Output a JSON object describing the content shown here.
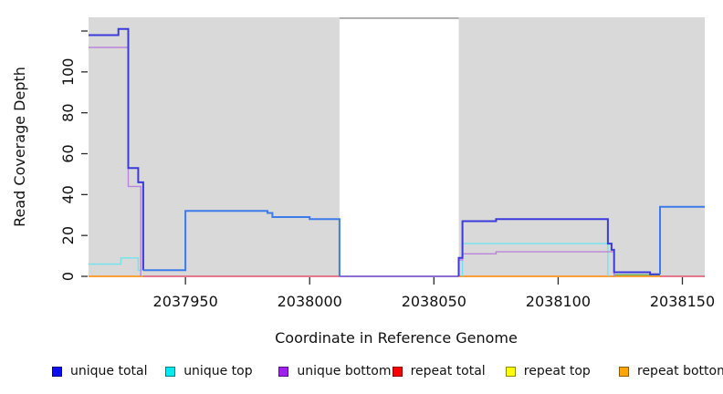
{
  "chart_data": {
    "type": "line",
    "title": "",
    "xlabel": "Coordinate in Reference Genome",
    "ylabel": "Read Coverage Depth",
    "xlim": [
      2037911,
      2038159
    ],
    "ylim": [
      0,
      126.7
    ],
    "x_ticks": [
      2037950,
      2038000,
      2038050,
      2038100,
      2038150
    ],
    "x_tick_labels": [
      "2037950",
      "2038000",
      "2038050",
      "2038100",
      "2038150"
    ],
    "y_ticks": [
      0,
      20,
      40,
      60,
      80,
      100,
      120
    ],
    "y_tick_labels": [
      "0",
      "20",
      "40",
      "60",
      "80",
      "100",
      ""
    ],
    "grid": "off",
    "plot_bg_color": "#d9d9d9",
    "mask_region": {
      "x_start": 2038012,
      "x_end": 2038060,
      "color": "#ffffff",
      "top_edge_color": "#9e9e9e"
    },
    "legend_position": "bottom",
    "legend": [
      {
        "label": "unique total",
        "color": "#0d0df0"
      },
      {
        "label": "unique top",
        "color": "#00e8f0"
      },
      {
        "label": "unique bottom",
        "color": "#a020f0"
      },
      {
        "label": "repeat total",
        "color": "#ff0000"
      },
      {
        "label": "repeat top",
        "color": "#ffff00"
      },
      {
        "label": "repeat bottom",
        "color": "#ffa500"
      }
    ],
    "segments": [
      {
        "name": "repeat-total-baseline",
        "legend": "repeat total",
        "color": "#e0506e",
        "width": 1.6,
        "points": [
          [
            2037911,
            0
          ],
          [
            2038159,
            0
          ]
        ]
      },
      {
        "name": "repeat-bottom-left",
        "legend": "repeat bottom",
        "color": "#ffa028",
        "width": 1.8,
        "points": [
          [
            2037911,
            0
          ],
          [
            2037933,
            0
          ]
        ]
      },
      {
        "name": "repeat-bottom-right",
        "legend": "repeat bottom",
        "color": "#ffa028",
        "width": 1.8,
        "points": [
          [
            2038060,
            0
          ],
          [
            2038141,
            0
          ]
        ]
      },
      {
        "name": "unique-zero-maskband",
        "legend": "unique total",
        "color": "#6a5bd8",
        "width": 1.6,
        "points": [
          [
            2038012,
            0
          ],
          [
            2038060,
            0
          ]
        ]
      },
      {
        "name": "cyan-orange-overlap",
        "legend": "unique top",
        "color": "#5faf50",
        "width": 1.3,
        "points": [
          [
            2038122.5,
            0.7
          ],
          [
            2038141,
            0.7
          ]
        ]
      },
      {
        "name": "unique-top-left",
        "legend": "unique top",
        "color": "#70e4ee",
        "width": 1.4,
        "points": [
          [
            2037911,
            6
          ],
          [
            2037924,
            6
          ],
          [
            2037924,
            9
          ],
          [
            2037931,
            9
          ],
          [
            2037931,
            3
          ],
          [
            2037933,
            3
          ]
        ]
      },
      {
        "name": "unique-top-right",
        "legend": "unique top",
        "color": "#70e4ee",
        "width": 1.4,
        "points": [
          [
            2038061.5,
            0
          ],
          [
            2038061.5,
            16
          ],
          [
            2038120,
            16
          ],
          [
            2038120,
            0
          ]
        ]
      },
      {
        "name": "unique-bottom-left",
        "legend": "unique bottom",
        "color": "#bb84dc",
        "width": 1.4,
        "points": [
          [
            2037911,
            112
          ],
          [
            2037927,
            112
          ],
          [
            2037927,
            44
          ],
          [
            2037932,
            44
          ],
          [
            2037932,
            0
          ]
        ]
      },
      {
        "name": "unique-bottom-right",
        "legend": "unique bottom",
        "color": "#bb84dc",
        "width": 1.4,
        "points": [
          [
            2038060,
            0
          ],
          [
            2038060,
            8
          ],
          [
            2038061.5,
            8
          ],
          [
            2038061.5,
            11
          ],
          [
            2038075,
            11
          ],
          [
            2038075,
            12
          ],
          [
            2038122.5,
            12
          ],
          [
            2038122.5,
            0
          ]
        ]
      },
      {
        "name": "unique-total-left",
        "legend": "unique total",
        "color": "#3a3adc",
        "width": 2,
        "points": [
          [
            2037911,
            118
          ],
          [
            2037923,
            118
          ],
          [
            2037923,
            121
          ],
          [
            2037927,
            121
          ],
          [
            2037927,
            53
          ],
          [
            2037931,
            53
          ],
          [
            2037931,
            46
          ],
          [
            2037933,
            46
          ],
          [
            2037933,
            3
          ]
        ]
      },
      {
        "name": "unique-total-mid",
        "legend": "unique total",
        "color": "#3d7bea",
        "width": 2,
        "points": [
          [
            2037933,
            3
          ],
          [
            2037950,
            3
          ],
          [
            2037950,
            32
          ],
          [
            2037983,
            32
          ],
          [
            2037983,
            31
          ],
          [
            2037985,
            31
          ],
          [
            2037985,
            29
          ],
          [
            2038000,
            29
          ],
          [
            2038000,
            28
          ],
          [
            2038012,
            28
          ],
          [
            2038012,
            0
          ]
        ]
      },
      {
        "name": "unique-total-right1",
        "legend": "unique total",
        "color": "#3a3adc",
        "width": 2,
        "points": [
          [
            2038060,
            0
          ],
          [
            2038060,
            9
          ],
          [
            2038061.5,
            9
          ],
          [
            2038061.5,
            27
          ],
          [
            2038075,
            27
          ],
          [
            2038075,
            28
          ],
          [
            2038120,
            28
          ],
          [
            2038120,
            16
          ],
          [
            2038121.5,
            16
          ],
          [
            2038121.5,
            13
          ],
          [
            2038122.5,
            13
          ],
          [
            2038122.5,
            2
          ],
          [
            2038137,
            2
          ],
          [
            2038137,
            1
          ],
          [
            2038141,
            1
          ]
        ]
      },
      {
        "name": "unique-total-right2",
        "legend": "unique total",
        "color": "#3d7bea",
        "width": 2,
        "points": [
          [
            2038141,
            1
          ],
          [
            2038141,
            34
          ],
          [
            2038159,
            34
          ]
        ]
      }
    ]
  }
}
